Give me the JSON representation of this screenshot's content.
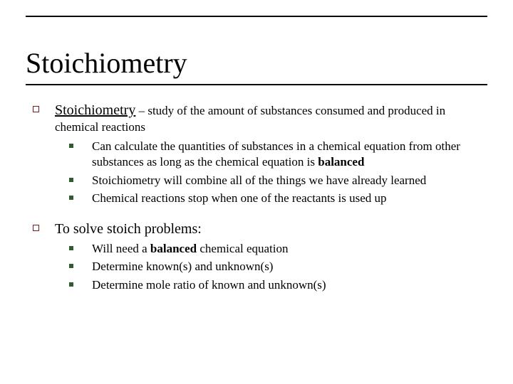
{
  "colors": {
    "outline_bullet": "#7a1c1c",
    "square_bullet": "#2e5c2e",
    "rule": "#000000",
    "text": "#000000",
    "background": "#ffffff"
  },
  "typography": {
    "title_fontsize": 40,
    "lead_fontsize": 20,
    "body_fontsize": 17,
    "font_family": "Times New Roman"
  },
  "title": "Stoichiometry",
  "items": [
    {
      "lead_underlined": "Stoichiometry",
      "lead_rest": " – study of the amount of substances consumed and produced in chemical reactions",
      "sub": [
        {
          "pre": "Can calculate the quantities of substances in a chemical equation from other substances as long as the chemical equation is ",
          "bold": "balanced",
          "post": ""
        },
        {
          "pre": "Stoichiometry will combine all of the things we have already learned",
          "bold": "",
          "post": ""
        },
        {
          "pre": "Chemical reactions stop when one of the reactants is used up",
          "bold": "",
          "post": ""
        }
      ]
    },
    {
      "lead_underlined": "",
      "lead_plain": "To solve stoich problems:",
      "sub": [
        {
          "pre": "Will need a ",
          "bold": "balanced",
          "post": " chemical equation"
        },
        {
          "pre": "Determine known(s) and unknown(s)",
          "bold": "",
          "post": ""
        },
        {
          "pre": "Determine mole ratio of known and unknown(s)",
          "bold": "",
          "post": ""
        }
      ]
    }
  ]
}
